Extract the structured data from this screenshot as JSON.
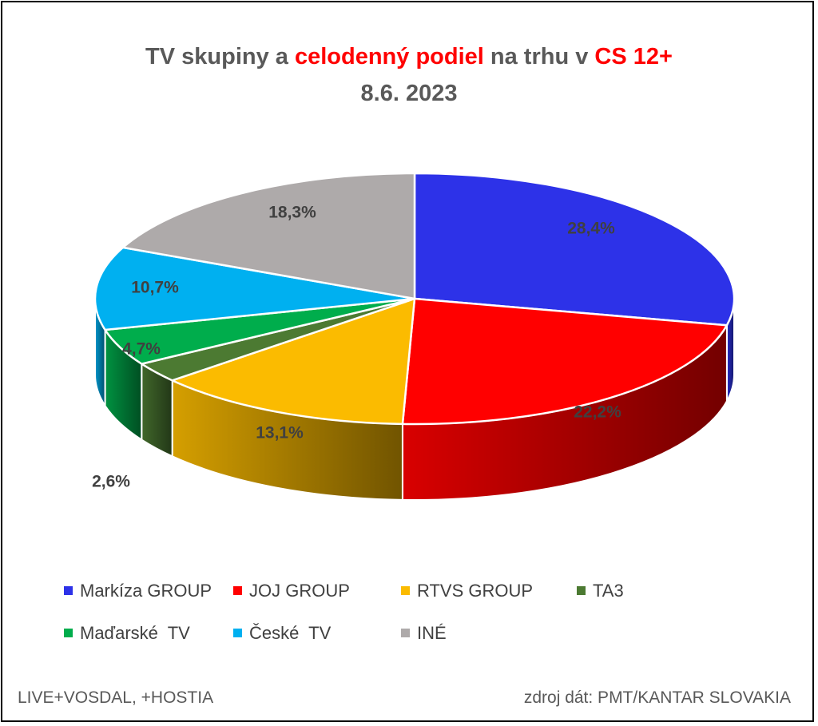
{
  "title": {
    "line1_part1": "TV skupiny a ",
    "line1_highlight1": "celodenný podiel",
    "line1_part2": " na trhu v ",
    "line1_highlight2": "CS 12+",
    "line2": "8.6. 2023"
  },
  "chart_data": {
    "type": "pie",
    "style": "3d",
    "title": "TV skupiny a celodenný podiel na trhu v CS 12+ 8.6. 2023",
    "unit": "%",
    "legend_position": "bottom",
    "slices": [
      {
        "name": "Markíza GROUP",
        "value": 28.4,
        "label": "28,4%",
        "color": "#2d32e8"
      },
      {
        "name": "JOJ GROUP",
        "value": 22.2,
        "label": "22,2%",
        "color": "#ff0000"
      },
      {
        "name": "RTVS GROUP",
        "value": 13.1,
        "label": "13,1%",
        "color": "#fbbb00"
      },
      {
        "name": "TA3",
        "value": 2.6,
        "label": "2,6%",
        "color": "#4c7a32"
      },
      {
        "name": "Maďarské  TV",
        "value": 4.7,
        "label": "4,7%",
        "color": "#00ad4c"
      },
      {
        "name": "České  TV",
        "value": 10.7,
        "label": "10,7%",
        "color": "#00b0f0"
      },
      {
        "name": "INÉ",
        "value": 18.3,
        "label": "18,3%",
        "color": "#aeaaaa"
      }
    ]
  },
  "footer": {
    "left": "LIVE+VOSDAL, +HOSTIA",
    "right": "zdroj dát: PMT/KANTAR SLOVAKIA"
  }
}
